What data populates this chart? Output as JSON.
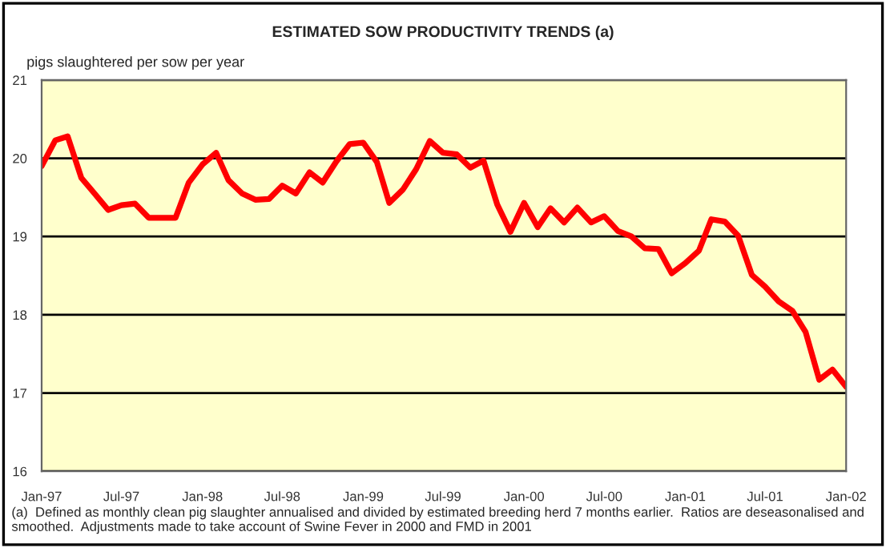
{
  "chart_data": {
    "type": "line",
    "title": "ESTIMATED SOW PRODUCTIVITY TRENDS (a)",
    "ylabel": "pigs slaughtered per sow per year",
    "x": [
      "1997-01",
      "1997-02",
      "1997-03",
      "1997-04",
      "1997-05",
      "1997-06",
      "1997-07",
      "1997-08",
      "1997-09",
      "1997-10",
      "1997-11",
      "1997-12",
      "1998-01",
      "1998-02",
      "1998-03",
      "1998-04",
      "1998-05",
      "1998-06",
      "1998-07",
      "1998-08",
      "1998-09",
      "1998-10",
      "1998-11",
      "1998-12",
      "1999-01",
      "1999-02",
      "1999-03",
      "1999-04",
      "1999-05",
      "1999-06",
      "1999-07",
      "1999-08",
      "1999-09",
      "1999-10",
      "1999-11",
      "1999-12",
      "2000-01",
      "2000-02",
      "2000-03",
      "2000-04",
      "2000-05",
      "2000-06",
      "2000-07",
      "2000-08",
      "2000-09",
      "2000-10",
      "2000-11",
      "2000-12",
      "2001-01",
      "2001-02",
      "2001-03",
      "2001-04",
      "2001-05",
      "2001-06",
      "2001-07",
      "2001-08",
      "2001-09",
      "2001-10",
      "2001-11",
      "2001-12",
      "2002-01"
    ],
    "series": [
      {
        "color": "#ff0000",
        "values": [
          19.9,
          20.23,
          20.28,
          19.75,
          19.55,
          19.34,
          19.4,
          19.42,
          19.24,
          19.24,
          19.24,
          19.69,
          19.92,
          20.07,
          19.72,
          19.55,
          19.47,
          19.48,
          19.65,
          19.55,
          19.82,
          19.69,
          19.96,
          20.18,
          20.2,
          19.95,
          19.43,
          19.6,
          19.86,
          20.22,
          20.07,
          20.05,
          19.88,
          19.97,
          19.41,
          19.06,
          19.43,
          19.12,
          19.36,
          19.18,
          19.37,
          19.18,
          19.26,
          19.07,
          19.0,
          18.85,
          18.84,
          18.53,
          18.66,
          18.82,
          19.22,
          19.19,
          19.01,
          18.51,
          18.36,
          18.17,
          18.05,
          17.78,
          17.17,
          17.3,
          17.08
        ]
      }
    ],
    "xlim": [
      "1997-01",
      "2002-01"
    ],
    "xticks": [
      {
        "value": "1997-01",
        "label": "Jan-97"
      },
      {
        "value": "1997-07",
        "label": "Jul-97"
      },
      {
        "value": "1998-01",
        "label": "Jan-98"
      },
      {
        "value": "1998-07",
        "label": "Jul-98"
      },
      {
        "value": "1999-01",
        "label": "Jan-99"
      },
      {
        "value": "1999-07",
        "label": "Jul-99"
      },
      {
        "value": "2000-01",
        "label": "Jan-00"
      },
      {
        "value": "2000-07",
        "label": "Jul-00"
      },
      {
        "value": "2001-01",
        "label": "Jan-01"
      },
      {
        "value": "2001-07",
        "label": "Jul-01"
      },
      {
        "value": "2002-01",
        "label": "Jan-02"
      }
    ],
    "ylim": [
      16,
      21
    ],
    "yticks": [
      16,
      17,
      18,
      19,
      20,
      21
    ],
    "grid": "y",
    "marker": "none",
    "line_style": "solid",
    "annotations": [
      "(a)  Defined as monthly clean pig slaughter annualised and divided by estimated breeding herd 7 months earlier.  Ratios are deseasonalised and smoothed.  Adjustments made to take account of Swine Fever in 2000 and FMD in 2001"
    ]
  }
}
